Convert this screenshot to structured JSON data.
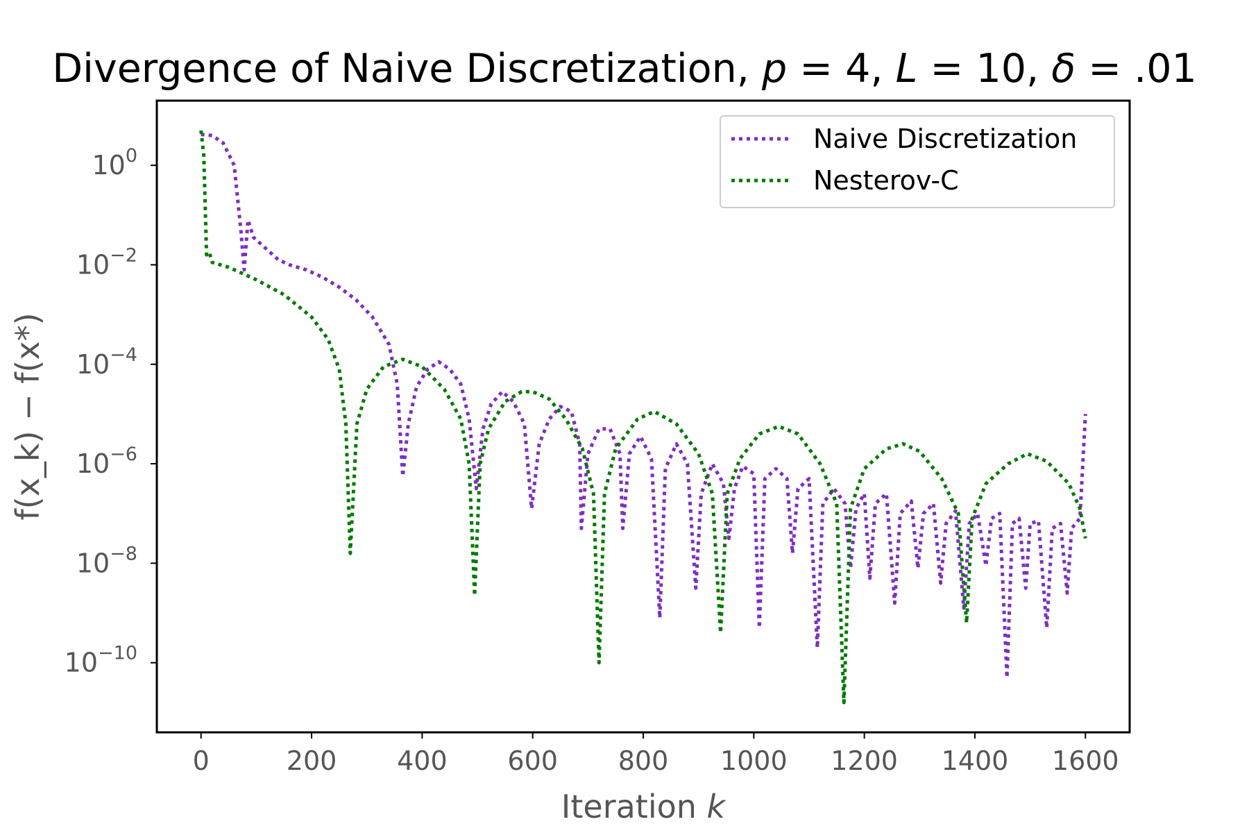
{
  "chart_data": {
    "type": "line",
    "title": {
      "prefix": "Divergence of Naive Discretization, ",
      "params": [
        {
          "symbol": "p",
          "value": "4"
        },
        {
          "symbol": "L",
          "value": "10"
        },
        {
          "symbol": "δ",
          "value": ".01"
        }
      ]
    },
    "xlabel": {
      "text": "Iteration ",
      "var": "k"
    },
    "ylabel": "f(x_k) − f(x*)",
    "xscale": "linear",
    "yscale": "log",
    "xlim": [
      -80,
      1680
    ],
    "ylim_log10": [
      -11.4,
      1.3
    ],
    "xticks": [
      0,
      200,
      400,
      600,
      800,
      1000,
      1200,
      1400,
      1600
    ],
    "yticks_exponent": [
      0,
      -2,
      -4,
      -6,
      -8,
      -10
    ],
    "ytick_base": "10",
    "legend_position": "top-right",
    "series": [
      {
        "name": "Naive Discretization",
        "color": "#7e2fbf",
        "points": [
          [
            0,
            0.62
          ],
          [
            20,
            0.6
          ],
          [
            40,
            0.45
          ],
          [
            60,
            0
          ],
          [
            72,
            -1.3
          ],
          [
            78,
            -2.1
          ],
          [
            85,
            -1.1
          ],
          [
            95,
            -1.45
          ],
          [
            110,
            -1.6
          ],
          [
            125,
            -1.75
          ],
          [
            140,
            -1.9
          ],
          [
            160,
            -2.0
          ],
          [
            190,
            -2.1
          ],
          [
            220,
            -2.25
          ],
          [
            250,
            -2.45
          ],
          [
            280,
            -2.7
          ],
          [
            310,
            -3.05
          ],
          [
            340,
            -3.6
          ],
          [
            355,
            -4.4
          ],
          [
            365,
            -6.25
          ],
          [
            375,
            -5.2
          ],
          [
            390,
            -4.45
          ],
          [
            410,
            -4.1
          ],
          [
            430,
            -3.95
          ],
          [
            450,
            -4.1
          ],
          [
            470,
            -4.4
          ],
          [
            485,
            -5.1
          ],
          [
            498,
            -6.5
          ],
          [
            510,
            -5.3
          ],
          [
            525,
            -4.8
          ],
          [
            545,
            -4.55
          ],
          [
            565,
            -4.75
          ],
          [
            585,
            -5.2
          ],
          [
            598,
            -6.9
          ],
          [
            612,
            -5.6
          ],
          [
            630,
            -5.1
          ],
          [
            650,
            -4.85
          ],
          [
            670,
            -4.95
          ],
          [
            685,
            -5.6
          ],
          [
            688,
            -7.3
          ],
          [
            700,
            -5.8
          ],
          [
            720,
            -5.3
          ],
          [
            740,
            -5.3
          ],
          [
            758,
            -5.8
          ],
          [
            763,
            -7.3
          ],
          [
            775,
            -5.8
          ],
          [
            795,
            -5.45
          ],
          [
            815,
            -5.9
          ],
          [
            830,
            -9.1
          ],
          [
            840,
            -6.1
          ],
          [
            860,
            -5.6
          ],
          [
            880,
            -6.0
          ],
          [
            895,
            -8.5
          ],
          [
            905,
            -6.6
          ],
          [
            925,
            -6.0
          ],
          [
            945,
            -6.4
          ],
          [
            955,
            -7.5
          ],
          [
            965,
            -6.5
          ],
          [
            980,
            -6.05
          ],
          [
            1000,
            -6.2
          ],
          [
            1010,
            -9.3
          ],
          [
            1020,
            -6.3
          ],
          [
            1040,
            -6.1
          ],
          [
            1060,
            -6.3
          ],
          [
            1070,
            -7.8
          ],
          [
            1080,
            -6.5
          ],
          [
            1100,
            -6.3
          ],
          [
            1115,
            -9.7
          ],
          [
            1125,
            -6.8
          ],
          [
            1145,
            -6.5
          ],
          [
            1165,
            -6.8
          ],
          [
            1175,
            -8.1
          ],
          [
            1185,
            -6.9
          ],
          [
            1200,
            -6.6
          ],
          [
            1210,
            -8.3
          ],
          [
            1220,
            -6.8
          ],
          [
            1240,
            -6.6
          ],
          [
            1255,
            -8.8
          ],
          [
            1265,
            -7.0
          ],
          [
            1285,
            -6.75
          ],
          [
            1297,
            -8.1
          ],
          [
            1307,
            -7.0
          ],
          [
            1325,
            -6.8
          ],
          [
            1338,
            -8.4
          ],
          [
            1348,
            -7.2
          ],
          [
            1365,
            -6.95
          ],
          [
            1380,
            -8.9
          ],
          [
            1390,
            -7.2
          ],
          [
            1405,
            -7.0
          ],
          [
            1420,
            -8.05
          ],
          [
            1430,
            -7.1
          ],
          [
            1445,
            -7.0
          ],
          [
            1458,
            -10.3
          ],
          [
            1468,
            -7.2
          ],
          [
            1480,
            -7.1
          ],
          [
            1492,
            -8.5
          ],
          [
            1500,
            -7.2
          ],
          [
            1515,
            -7.15
          ],
          [
            1530,
            -9.3
          ],
          [
            1540,
            -7.3
          ],
          [
            1555,
            -7.2
          ],
          [
            1567,
            -8.6
          ],
          [
            1575,
            -7.3
          ],
          [
            1590,
            -7.1
          ],
          [
            1600,
            -5.0
          ]
        ]
      },
      {
        "name": "Nesterov-C",
        "color": "#007a00",
        "points": [
          [
            0,
            0.7
          ],
          [
            5,
            0.2
          ],
          [
            10,
            -1.8
          ],
          [
            15,
            -1.75
          ],
          [
            20,
            -1.95
          ],
          [
            50,
            -2.05
          ],
          [
            100,
            -2.3
          ],
          [
            150,
            -2.6
          ],
          [
            200,
            -3.05
          ],
          [
            230,
            -3.5
          ],
          [
            250,
            -4.1
          ],
          [
            262,
            -5.2
          ],
          [
            270,
            -7.8
          ],
          [
            282,
            -5.2
          ],
          [
            300,
            -4.5
          ],
          [
            330,
            -4.05
          ],
          [
            365,
            -3.9
          ],
          [
            400,
            -4.05
          ],
          [
            440,
            -4.5
          ],
          [
            470,
            -5.1
          ],
          [
            485,
            -6.0
          ],
          [
            495,
            -8.65
          ],
          [
            505,
            -6.0
          ],
          [
            520,
            -5.3
          ],
          [
            550,
            -4.75
          ],
          [
            580,
            -4.55
          ],
          [
            600,
            -4.55
          ],
          [
            630,
            -4.7
          ],
          [
            660,
            -5.1
          ],
          [
            690,
            -5.7
          ],
          [
            710,
            -6.6
          ],
          [
            720,
            -10.0
          ],
          [
            730,
            -6.6
          ],
          [
            750,
            -5.7
          ],
          [
            790,
            -5.1
          ],
          [
            820,
            -4.95
          ],
          [
            860,
            -5.2
          ],
          [
            900,
            -5.8
          ],
          [
            925,
            -6.6
          ],
          [
            940,
            -9.4
          ],
          [
            952,
            -6.6
          ],
          [
            975,
            -5.9
          ],
          [
            1010,
            -5.4
          ],
          [
            1045,
            -5.25
          ],
          [
            1080,
            -5.4
          ],
          [
            1120,
            -6.0
          ],
          [
            1150,
            -6.8
          ],
          [
            1163,
            -10.8
          ],
          [
            1175,
            -6.9
          ],
          [
            1200,
            -6.1
          ],
          [
            1240,
            -5.7
          ],
          [
            1270,
            -5.6
          ],
          [
            1300,
            -5.75
          ],
          [
            1340,
            -6.3
          ],
          [
            1370,
            -7.0
          ],
          [
            1385,
            -9.2
          ],
          [
            1395,
            -7.1
          ],
          [
            1420,
            -6.4
          ],
          [
            1460,
            -6.0
          ],
          [
            1495,
            -5.8
          ],
          [
            1530,
            -5.95
          ],
          [
            1570,
            -6.4
          ],
          [
            1590,
            -6.9
          ],
          [
            1600,
            -7.5
          ]
        ]
      }
    ]
  }
}
